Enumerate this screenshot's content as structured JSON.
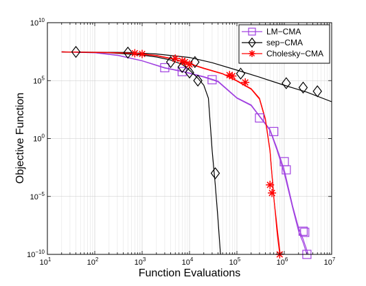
{
  "chart_data": {
    "type": "line",
    "title": "",
    "xlabel": "Function Evaluations",
    "ylabel": "Objective Function",
    "xscale": "log",
    "yscale": "log",
    "xlim": [
      10,
      10000000
    ],
    "ylim": [
      1e-10,
      10000000000.0
    ],
    "x_ticks": [
      {
        "value": 10,
        "base": "10",
        "exp": "1"
      },
      {
        "value": 100,
        "base": "10",
        "exp": "2"
      },
      {
        "value": 1000,
        "base": "10",
        "exp": "3"
      },
      {
        "value": 10000,
        "base": "10",
        "exp": "4"
      },
      {
        "value": 100000,
        "base": "10",
        "exp": "5"
      },
      {
        "value": 1000000,
        "base": "10",
        "exp": "6"
      },
      {
        "value": 10000000,
        "base": "10",
        "exp": "7"
      }
    ],
    "y_ticks": [
      {
        "value": 1e-10,
        "base": "10",
        "exp": "−10"
      },
      {
        "value": 1e-05,
        "base": "10",
        "exp": "−5"
      },
      {
        "value": 1,
        "base": "10",
        "exp": "0"
      },
      {
        "value": 100000.0,
        "base": "10",
        "exp": "5"
      },
      {
        "value": 10000000000.0,
        "base": "10",
        "exp": "10"
      }
    ],
    "grid": true,
    "legend_position": "top-right",
    "series": [
      {
        "name": "LM−CMA",
        "color": "#a040e0",
        "marker": "square",
        "lines": [
          [
            [
              20,
              30000000.0
            ],
            [
              100,
              25000000.0
            ],
            [
              300,
              15000000.0
            ],
            [
              1000,
              5000000.0
            ],
            [
              3000,
              1200000.0
            ],
            [
              7000,
              600000.0
            ],
            [
              20000,
              200000.0
            ],
            [
              40000,
              80000.0
            ],
            [
              100000,
              3000.0
            ],
            [
              200000,
              700
            ],
            [
              300000,
              80
            ],
            [
              500000,
              5
            ],
            [
              700000,
              0.1
            ],
            [
              1000000,
              0.001
            ],
            [
              1500000,
              1e-06
            ],
            [
              2000000,
              1e-08
            ],
            [
              2500000,
              1e-09
            ],
            [
              3000000,
              1e-10
            ]
          ],
          [
            [
              20,
              30000000.0
            ],
            [
              100,
              26000000.0
            ],
            [
              300,
              16000000.0
            ],
            [
              1000,
              5200000.0
            ],
            [
              3000,
              1300000.0
            ],
            [
              7000,
              650000.0
            ],
            [
              20000,
              220000.0
            ],
            [
              40000,
              90000.0
            ],
            [
              100000,
              3300.0
            ],
            [
              200000,
              800
            ],
            [
              300000,
              90
            ],
            [
              500000,
              6
            ],
            [
              700000,
              0.15
            ],
            [
              1000000,
              0.002
            ],
            [
              1500000,
              1.5e-06
            ],
            [
              2000000,
              2e-08
            ],
            [
              2500000,
              2e-09
            ],
            [
              3200000,
              1e-10
            ]
          ]
        ],
        "markers": [
          [
            3000,
            1300000.0
          ],
          [
            7000,
            600000.0
          ],
          [
            30000,
            120000.0
          ],
          [
            300000,
            60
          ],
          [
            600000,
            4
          ],
          [
            1000000,
            0.01
          ],
          [
            1100000,
            0.002
          ],
          [
            2500000,
            1e-08
          ],
          [
            2700000,
            8e-09
          ],
          [
            3000000,
            1e-10
          ]
        ]
      },
      {
        "name": "sep−CMA",
        "color": "#000000",
        "marker": "diamond",
        "lines": [
          [
            [
              20,
              30000000.0
            ],
            [
              200,
              25000000.0
            ],
            [
              500,
              20000000.0
            ],
            [
              1000,
              16000000.0
            ],
            [
              2000,
              11000000.0
            ],
            [
              4000,
              6000000.0
            ],
            [
              7000,
              2500000.0
            ],
            [
              10000,
              800000.0
            ],
            [
              15000,
              160000.0
            ],
            [
              20000,
              40000.0
            ],
            [
              25000,
              3000.0
            ],
            [
              30000,
              0.1
            ],
            [
              35000,
              0.0001
            ],
            [
              40000,
              1e-07
            ],
            [
              45000,
              1e-10
            ]
          ],
          [
            [
              20,
              30000000.0
            ],
            [
              500,
              27000000.0
            ],
            [
              2000,
              20000000.0
            ],
            [
              10000,
              10000000.0
            ],
            [
              30000,
              3500000.0
            ],
            [
              100000,
              800000.0
            ],
            [
              300000,
              200000.0
            ],
            [
              1000000,
              40000.0
            ],
            [
              3000000,
              10000.0
            ],
            [
              10000000,
              1500.0
            ]
          ]
        ],
        "markers": [
          [
            40,
            30000000.0
          ],
          [
            500,
            26000000.0
          ],
          [
            4000,
            4000000.0
          ],
          [
            7000,
            1500000.0
          ],
          [
            10000,
            500000.0
          ],
          [
            15000,
            100000.0
          ],
          [
            13000,
            4000000.0
          ],
          [
            35000,
            0.001
          ],
          [
            120000,
            400000.0
          ],
          [
            1100000,
            60000.0
          ],
          [
            2500000,
            25000.0
          ],
          [
            5000000,
            12000.0
          ]
        ]
      },
      {
        "name": "Cholesky−CMA",
        "color": "#ff0000",
        "marker": "asterisk",
        "lines": [
          [
            [
              20,
              30000000.0
            ],
            [
              200,
              27000000.0
            ],
            [
              700,
              23000000.0
            ],
            [
              2000,
              15000000.0
            ],
            [
              5000,
              7000000.0
            ],
            [
              10000,
              3000000.0
            ],
            [
              20000,
              1200000.0
            ],
            [
              50000,
              400000.0
            ],
            [
              100000,
              100000.0
            ],
            [
              200000,
              20000.0
            ],
            [
              300000,
              3000.0
            ],
            [
              400000,
              50
            ],
            [
              500000,
              0.1
            ],
            [
              600000,
              1e-05
            ],
            [
              700000,
              1e-08
            ],
            [
              800000,
              1e-10
            ]
          ],
          [
            [
              20,
              30000000.0
            ],
            [
              200,
              26000000.0
            ],
            [
              700,
              22000000.0
            ],
            [
              2000,
              14000000.0
            ],
            [
              5000,
              6500000.0
            ],
            [
              10000,
              2800000.0
            ],
            [
              20000,
              1100000.0
            ],
            [
              50000,
              380000.0
            ],
            [
              100000,
              90000.0
            ],
            [
              200000,
              18000.0
            ],
            [
              300000,
              2500.0
            ],
            [
              400000,
              40
            ],
            [
              500000,
              0.08
            ],
            [
              600000,
              8e-06
            ],
            [
              720000,
              1e-08
            ],
            [
              820000,
              1e-10
            ]
          ]
        ],
        "markers": [
          [
            700,
            23000000.0
          ],
          [
            1000,
            20000000.0
          ],
          [
            5000,
            8000000.0
          ],
          [
            7000,
            5000000.0
          ],
          [
            8000,
            4000000.0
          ],
          [
            10000,
            2500000.0
          ],
          [
            70000,
            300000.0
          ],
          [
            80000,
            250000.0
          ],
          [
            150000,
            70000.0
          ],
          [
            500000,
            0.0001
          ],
          [
            550000,
            2e-05
          ],
          [
            800000,
            1e-10
          ]
        ]
      }
    ]
  }
}
